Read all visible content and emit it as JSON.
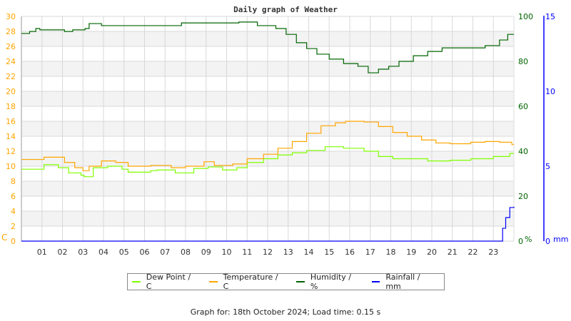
{
  "chart_data": {
    "type": "line",
    "title": "Daily graph of Weather",
    "x_tick_labels": [
      "01",
      "02",
      "03",
      "04",
      "05",
      "06",
      "07",
      "08",
      "09",
      "10",
      "11",
      "12",
      "13",
      "14",
      "15",
      "16",
      "17",
      "18",
      "19",
      "20",
      "21",
      "22",
      "23"
    ],
    "xlim": [
      0,
      24
    ],
    "grid": true,
    "legend_position": "bottom",
    "axes": {
      "left": {
        "unit_label": "C",
        "ylim": [
          0,
          30
        ],
        "ticks": [
          0,
          2,
          4,
          6,
          8,
          10,
          12,
          14,
          16,
          18,
          20,
          22,
          24,
          26,
          28,
          30
        ],
        "color": "#ffa500"
      },
      "right_humidity": {
        "unit_label": "%",
        "ylim": [
          0,
          100
        ],
        "ticks": [
          0,
          20,
          40,
          60,
          80,
          100
        ],
        "color": "#006400"
      },
      "right_rain": {
        "unit_label": "mm",
        "ylim": [
          0,
          15
        ],
        "ticks": [
          0,
          5,
          10,
          15
        ],
        "color": "#0000ff"
      }
    },
    "series": [
      {
        "name": "Dew Point / C",
        "axis": "left",
        "color": "#80ff00",
        "points": [
          [
            0,
            9.6
          ],
          [
            1.1,
            10.2
          ],
          [
            1.8,
            9.8
          ],
          [
            2.3,
            9.1
          ],
          [
            2.9,
            8.8
          ],
          [
            3.05,
            8.6
          ],
          [
            3.5,
            9.8
          ],
          [
            4.2,
            10
          ],
          [
            4.9,
            9.6
          ],
          [
            5.2,
            9.2
          ],
          [
            6.3,
            9.4
          ],
          [
            6.6,
            9.5
          ],
          [
            7.5,
            9.1
          ],
          [
            8.4,
            9.7
          ],
          [
            9.1,
            9.9
          ],
          [
            9.8,
            9.5
          ],
          [
            10.5,
            9.8
          ],
          [
            11,
            10.5
          ],
          [
            11.8,
            11
          ],
          [
            12.5,
            11.5
          ],
          [
            13.2,
            11.8
          ],
          [
            13.9,
            12.1
          ],
          [
            14.8,
            12.6
          ],
          [
            15.7,
            12.4
          ],
          [
            16.7,
            12
          ],
          [
            17.4,
            11.3
          ],
          [
            18.1,
            11
          ],
          [
            19.1,
            11
          ],
          [
            19.8,
            10.7
          ],
          [
            20.9,
            10.8
          ],
          [
            21.9,
            11
          ],
          [
            23,
            11.3
          ],
          [
            23.8,
            11.7
          ],
          [
            24,
            11.7
          ]
        ]
      },
      {
        "name": "Temperature / C",
        "axis": "left",
        "color": "#ffa500",
        "points": [
          [
            0,
            10.9
          ],
          [
            1.1,
            11.2
          ],
          [
            2.1,
            10.5
          ],
          [
            2.6,
            9.8
          ],
          [
            3,
            9.4
          ],
          [
            3.3,
            10
          ],
          [
            3.9,
            10.7
          ],
          [
            4.6,
            10.5
          ],
          [
            5.2,
            10
          ],
          [
            6.3,
            10.1
          ],
          [
            7.3,
            9.8
          ],
          [
            8,
            10
          ],
          [
            8.9,
            10.6
          ],
          [
            9.4,
            10.1
          ],
          [
            10.3,
            10.3
          ],
          [
            11,
            11
          ],
          [
            11.8,
            11.6
          ],
          [
            12.5,
            12.4
          ],
          [
            13.2,
            13.3
          ],
          [
            13.9,
            14.4
          ],
          [
            14.6,
            15.4
          ],
          [
            15.3,
            15.8
          ],
          [
            15.8,
            16
          ],
          [
            16.7,
            15.9
          ],
          [
            17.4,
            15.3
          ],
          [
            18.1,
            14.5
          ],
          [
            18.8,
            14
          ],
          [
            19.5,
            13.5
          ],
          [
            20.2,
            13.1
          ],
          [
            20.9,
            13
          ],
          [
            21.9,
            13.2
          ],
          [
            22.6,
            13.3
          ],
          [
            23.3,
            13.2
          ],
          [
            23.9,
            12.9
          ],
          [
            24,
            12.9
          ]
        ]
      },
      {
        "name": "Humidity / %",
        "axis": "right_humidity",
        "color": "#006400",
        "points": [
          [
            0,
            92.4
          ],
          [
            0.4,
            93.3
          ],
          [
            0.7,
            94.6
          ],
          [
            0.9,
            94
          ],
          [
            2.1,
            93.3
          ],
          [
            2.5,
            94
          ],
          [
            3.1,
            94.6
          ],
          [
            3.3,
            96.8
          ],
          [
            3.9,
            95.9
          ],
          [
            5.2,
            95.9
          ],
          [
            7.3,
            95.9
          ],
          [
            7.8,
            97.1
          ],
          [
            9,
            97.1
          ],
          [
            9.4,
            97.1
          ],
          [
            10.6,
            97.5
          ],
          [
            11.5,
            95.9
          ],
          [
            12.4,
            94.6
          ],
          [
            12.9,
            92
          ],
          [
            13.4,
            88.3
          ],
          [
            13.9,
            85.7
          ],
          [
            14.4,
            83.2
          ],
          [
            15,
            81
          ],
          [
            15.7,
            79
          ],
          [
            16.4,
            77.8
          ],
          [
            16.9,
            74.9
          ],
          [
            17.4,
            76.5
          ],
          [
            17.9,
            77.8
          ],
          [
            18.4,
            80
          ],
          [
            19.1,
            82.5
          ],
          [
            19.8,
            84.4
          ],
          [
            20.5,
            86
          ],
          [
            21.9,
            86
          ],
          [
            22.6,
            87
          ],
          [
            23.3,
            89.5
          ],
          [
            23.7,
            92
          ],
          [
            24,
            92
          ]
        ]
      },
      {
        "name": "Rainfall / mm",
        "axis": "right_rain",
        "color": "#0000ff",
        "points": [
          [
            0,
            0
          ],
          [
            23.3,
            0
          ],
          [
            23.45,
            0.86
          ],
          [
            23.6,
            1.57
          ],
          [
            23.8,
            2.24
          ],
          [
            24,
            2.3
          ]
        ]
      }
    ]
  },
  "footer": "Graph for: 18th October 2024; Load time: 0.15 s"
}
